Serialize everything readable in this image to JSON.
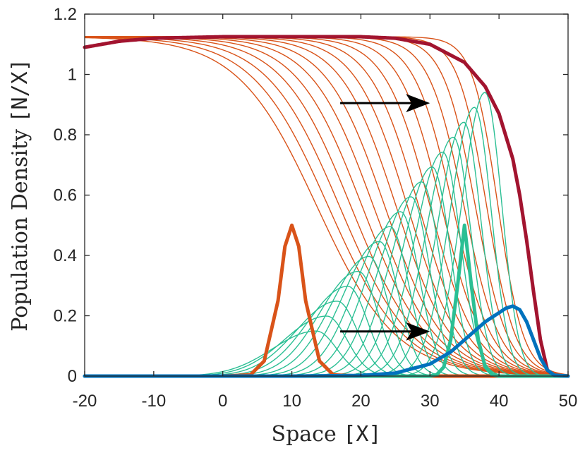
{
  "chart_data": {
    "type": "line",
    "xlabel_text": "Space ",
    "xlabel_unit": "[X]",
    "ylabel_text": "Population Density ",
    "ylabel_unit": "[N/X]",
    "xlim": [
      -20,
      50
    ],
    "ylim": [
      0,
      1.2
    ],
    "xticks": [
      -20,
      -10,
      0,
      10,
      20,
      30,
      40,
      50
    ],
    "xtick_labels": [
      "-20",
      "-10",
      "0",
      "10",
      "20",
      "30",
      "40",
      "50"
    ],
    "yticks": [
      0,
      0.2,
      0.4,
      0.6,
      0.8,
      1.0,
      1.2
    ],
    "ytick_labels": [
      "0",
      "0.2",
      "0.4",
      "0.6",
      "0.8",
      "1",
      "1.2"
    ],
    "grid": false,
    "colors": {
      "orange": "#D95319",
      "teal": "#2BBF94",
      "blue": "#0072BD",
      "crimson": "#A2142F",
      "arrow": "#000000"
    },
    "series": [
      {
        "color": "orange",
        "role": "initial-profile",
        "x": [
          -20,
          0,
          4,
          6,
          8,
          9,
          10,
          11,
          12,
          14,
          16,
          20,
          50
        ],
        "y": [
          0,
          0,
          0.004,
          0.05,
          0.25,
          0.43,
          0.5,
          0.43,
          0.25,
          0.05,
          0.004,
          0,
          0
        ]
      },
      {
        "color": "crimson",
        "role": "final-profile",
        "x": [
          -20,
          -15,
          -10,
          0,
          10,
          20,
          25,
          30,
          35,
          38,
          40,
          42,
          43,
          44,
          45,
          46,
          47,
          48,
          50
        ],
        "y": [
          1.09,
          1.11,
          1.12,
          1.125,
          1.125,
          1.125,
          1.12,
          1.1,
          1.04,
          0.96,
          0.87,
          0.72,
          0.6,
          0.45,
          0.28,
          0.12,
          0.02,
          0.0,
          0.0
        ]
      },
      {
        "color": "teal",
        "role": "initial-profile",
        "x": [
          -20,
          30,
          31,
          32,
          33,
          34,
          35,
          36,
          37,
          38,
          39,
          40,
          50
        ],
        "y": [
          0,
          0,
          0.005,
          0.03,
          0.12,
          0.3,
          0.5,
          0.3,
          0.12,
          0.03,
          0.005,
          0,
          0
        ]
      },
      {
        "color": "blue",
        "role": "final-profile",
        "x": [
          -20,
          0,
          10,
          20,
          25,
          30,
          33,
          36,
          38,
          40,
          41,
          42,
          43,
          44,
          45,
          46,
          47,
          48,
          50
        ],
        "y": [
          0,
          0,
          0,
          0.002,
          0.01,
          0.04,
          0.08,
          0.14,
          0.18,
          0.21,
          0.225,
          0.232,
          0.22,
          0.18,
          0.12,
          0.06,
          0.02,
          0.003,
          0
        ]
      }
    ],
    "intermediate_curves": {
      "orange_count": 17,
      "teal_count": 17
    },
    "arrows": [
      {
        "from": [
          17,
          0.905
        ],
        "to": [
          30,
          0.905
        ]
      },
      {
        "from": [
          17,
          0.148
        ],
        "to": [
          30,
          0.148
        ]
      }
    ]
  }
}
